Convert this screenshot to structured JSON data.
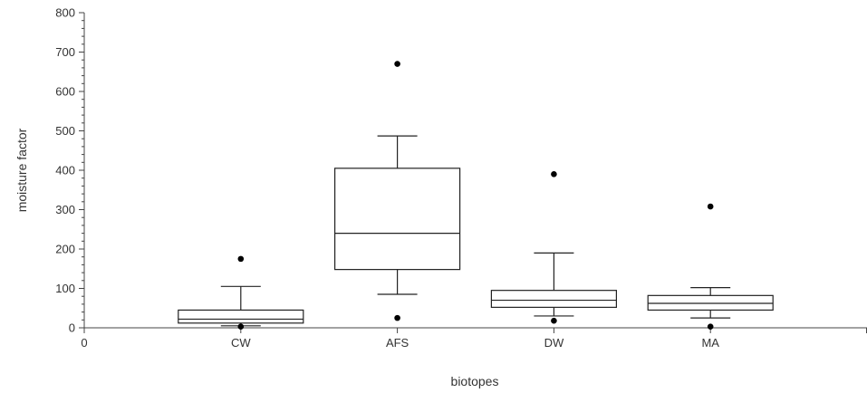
{
  "chart_data": {
    "type": "boxplot",
    "xlabel": "biotopes",
    "ylabel": "moisture factor",
    "ylim": [
      0,
      800
    ],
    "y_ticks": [
      0,
      100,
      200,
      300,
      400,
      500,
      600,
      700,
      800
    ],
    "y_tick_labels": [
      "0",
      "100",
      "200",
      "300",
      "400",
      "500",
      "600",
      "700",
      "800"
    ],
    "x_origin_label": "0",
    "grid": false,
    "categories": [
      "CW",
      "AFS",
      "DW",
      "MA"
    ],
    "boxes": [
      {
        "category": "CW",
        "whisker_low": 5,
        "q1": 12,
        "median": 22,
        "q3": 45,
        "whisker_high": 105,
        "outliers": [
          175,
          3
        ]
      },
      {
        "category": "AFS",
        "whisker_low": 85,
        "q1": 148,
        "median": 240,
        "q3": 405,
        "whisker_high": 487,
        "outliers": [
          670,
          25
        ]
      },
      {
        "category": "DW",
        "whisker_low": 30,
        "q1": 52,
        "median": 70,
        "q3": 95,
        "whisker_high": 190,
        "outliers": [
          390,
          18
        ]
      },
      {
        "category": "MA",
        "whisker_low": 25,
        "q1": 45,
        "median": 62,
        "q3": 82,
        "whisker_high": 102,
        "outliers": [
          308,
          3
        ]
      }
    ]
  }
}
